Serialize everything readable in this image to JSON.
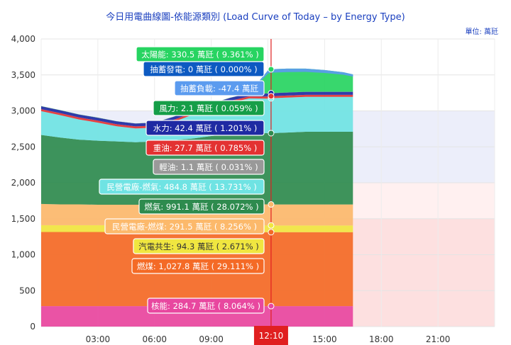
{
  "chart_title": "今日用電曲線圖-依能源類別 (Load Curve of Today – by Energy Type)",
  "unit": "單位: 萬瓩",
  "colors": {
    "nuclear": "#e8479f",
    "coal": "#f46a26",
    "cogen": "#f0e640",
    "cogen_coal": "#fcb96b",
    "lng": "#2e8b4e",
    "cogen_lng": "#6fe3e3",
    "light_oil": "#999999",
    "heavy_oil": "#e33232",
    "hydro": "#1f2aa3",
    "wind": "#169e48",
    "storage_load": "#5b9bef",
    "storage_gen": "#0d5ac2",
    "solar": "#27d461",
    "current_line": "#e02020",
    "band_low": "#fde0e0",
    "band_mid": "#fff0f0",
    "band_high": "#eceefa"
  },
  "chart_data": {
    "type": "area",
    "stacked": true,
    "title": "今日用電曲線圖-依能源類別 (Load Curve of Today – by Energy Type)",
    "ylabel": "",
    "xlabel": "",
    "ylim": [
      0,
      4000
    ],
    "yticks": [
      0,
      500,
      1000,
      1500,
      2000,
      2500,
      3000,
      3500,
      4000
    ],
    "xtick_labels": [
      "03:00",
      "06:00",
      "09:00",
      "15:00",
      "18:00",
      "21:00"
    ],
    "xtick_hours": [
      3,
      6,
      9,
      15,
      18,
      21
    ],
    "xlim_hours": [
      0,
      24
    ],
    "current_time_label": "12:10",
    "current_time_hours": 12.1667,
    "data_end_hours": 16.5,
    "x_hours": [
      0,
      1,
      2,
      3,
      4,
      5,
      6,
      7,
      8,
      9,
      10,
      11,
      12,
      12.1667,
      13,
      14,
      15,
      16,
      16.5
    ],
    "series": [
      {
        "key": "nuclear",
        "values": [
          285,
          285,
          285,
          285,
          285,
          285,
          285,
          285,
          285,
          285,
          285,
          285,
          285,
          285,
          285,
          285,
          285,
          285,
          285
        ]
      },
      {
        "key": "coal",
        "values": [
          1030,
          1030,
          1030,
          1030,
          1030,
          1030,
          1030,
          1030,
          1030,
          1030,
          1030,
          1030,
          1028,
          1028,
          1028,
          1028,
          1028,
          1028,
          1028
        ]
      },
      {
        "key": "cogen",
        "values": [
          95,
          95,
          95,
          95,
          95,
          95,
          95,
          95,
          95,
          95,
          95,
          95,
          95,
          94,
          94,
          94,
          94,
          94,
          94
        ]
      },
      {
        "key": "cogen_coal",
        "values": [
          295,
          290,
          290,
          285,
          285,
          285,
          285,
          285,
          285,
          290,
          290,
          292,
          292,
          292,
          292,
          292,
          292,
          292,
          292
        ]
      },
      {
        "key": "lng",
        "values": [
          960,
          930,
          900,
          890,
          880,
          870,
          880,
          900,
          920,
          950,
          980,
          1000,
          990,
          991,
          1000,
          1010,
          1010,
          1010,
          1010
        ]
      },
      {
        "key": "cogen_lng",
        "values": [
          330,
          310,
          280,
          250,
          210,
          190,
          190,
          250,
          330,
          380,
          430,
          470,
          480,
          485,
          485,
          485,
          485,
          485,
          485
        ]
      },
      {
        "key": "light_oil",
        "values": [
          1,
          1,
          1,
          1,
          1,
          1,
          1,
          1,
          1,
          1,
          1,
          1,
          1,
          1,
          1,
          1,
          1,
          1,
          1
        ]
      },
      {
        "key": "heavy_oil",
        "values": [
          28,
          28,
          28,
          28,
          28,
          28,
          28,
          28,
          28,
          28,
          28,
          28,
          28,
          28,
          28,
          28,
          28,
          28,
          28
        ]
      },
      {
        "key": "hydro",
        "values": [
          40,
          40,
          40,
          40,
          40,
          40,
          42,
          42,
          42,
          42,
          42,
          42,
          42,
          42,
          42,
          42,
          42,
          42,
          42
        ]
      },
      {
        "key": "wind",
        "values": [
          2,
          2,
          2,
          2,
          2,
          2,
          2,
          2,
          2,
          2,
          2,
          2,
          2,
          2,
          2,
          2,
          2,
          2,
          2
        ]
      },
      {
        "key": "storage_gen",
        "values": [
          0,
          0,
          0,
          0,
          0,
          0,
          0,
          0,
          0,
          0,
          0,
          0,
          0,
          0,
          0,
          0,
          0,
          0,
          0
        ]
      },
      {
        "key": "solar",
        "values": [
          0,
          0,
          0,
          0,
          0,
          0,
          0,
          0,
          0,
          0,
          0,
          0,
          320,
          330,
          330,
          320,
          300,
          270,
          240
        ]
      },
      {
        "key": "storage_load",
        "values": [
          0,
          0,
          0,
          0,
          0,
          0,
          0,
          0,
          0,
          0,
          0,
          0,
          -45,
          -47,
          -47,
          -45,
          -40,
          -35,
          -30
        ]
      }
    ],
    "tooltip": [
      {
        "key": "solar",
        "label": "太陽能: 330.5 萬瓩 ( 9.361% )",
        "value": 330.5,
        "percent": 9.361
      },
      {
        "key": "storage_gen",
        "label": "抽蓄發電: 0 萬瓩 ( 0.000% )",
        "value": 0,
        "percent": 0.0
      },
      {
        "key": "storage_load",
        "label": "抽蓄負載: -47.4 萬瓩",
        "value": -47.4
      },
      {
        "key": "wind",
        "label": "風力: 2.1 萬瓩 ( 0.059% )",
        "value": 2.1,
        "percent": 0.059
      },
      {
        "key": "hydro",
        "label": "水力: 42.4 萬瓩 ( 1.201% )",
        "value": 42.4,
        "percent": 1.201
      },
      {
        "key": "heavy_oil",
        "label": "重油: 27.7 萬瓩 ( 0.785% )",
        "value": 27.7,
        "percent": 0.785
      },
      {
        "key": "light_oil",
        "label": "輕油: 1.1 萬瓩 ( 0.031% )",
        "value": 1.1,
        "percent": 0.031
      },
      {
        "key": "cogen_lng",
        "label": "民營電廠-燃氣: 484.8 萬瓩 ( 13.731% )",
        "value": 484.8,
        "percent": 13.731
      },
      {
        "key": "lng",
        "label": "燃氣: 991.1 萬瓩 ( 28.072% )",
        "value": 991.1,
        "percent": 28.072
      },
      {
        "key": "cogen_coal",
        "label": "民營電廠-燃煤: 291.5 萬瓩 ( 8.256% )",
        "value": 291.5,
        "percent": 8.256
      },
      {
        "key": "cogen",
        "label": "汽電共生: 94.3 萬瓩 ( 2.671% )",
        "value": 94.3,
        "percent": 2.671
      },
      {
        "key": "coal",
        "label": "燃煤: 1,027.8 萬瓩 ( 29.111% )",
        "value": 1027.8,
        "percent": 29.111
      },
      {
        "key": "nuclear",
        "label": "核能: 284.7 萬瓩 ( 8.064% )",
        "value": 284.7,
        "percent": 8.064
      }
    ]
  }
}
